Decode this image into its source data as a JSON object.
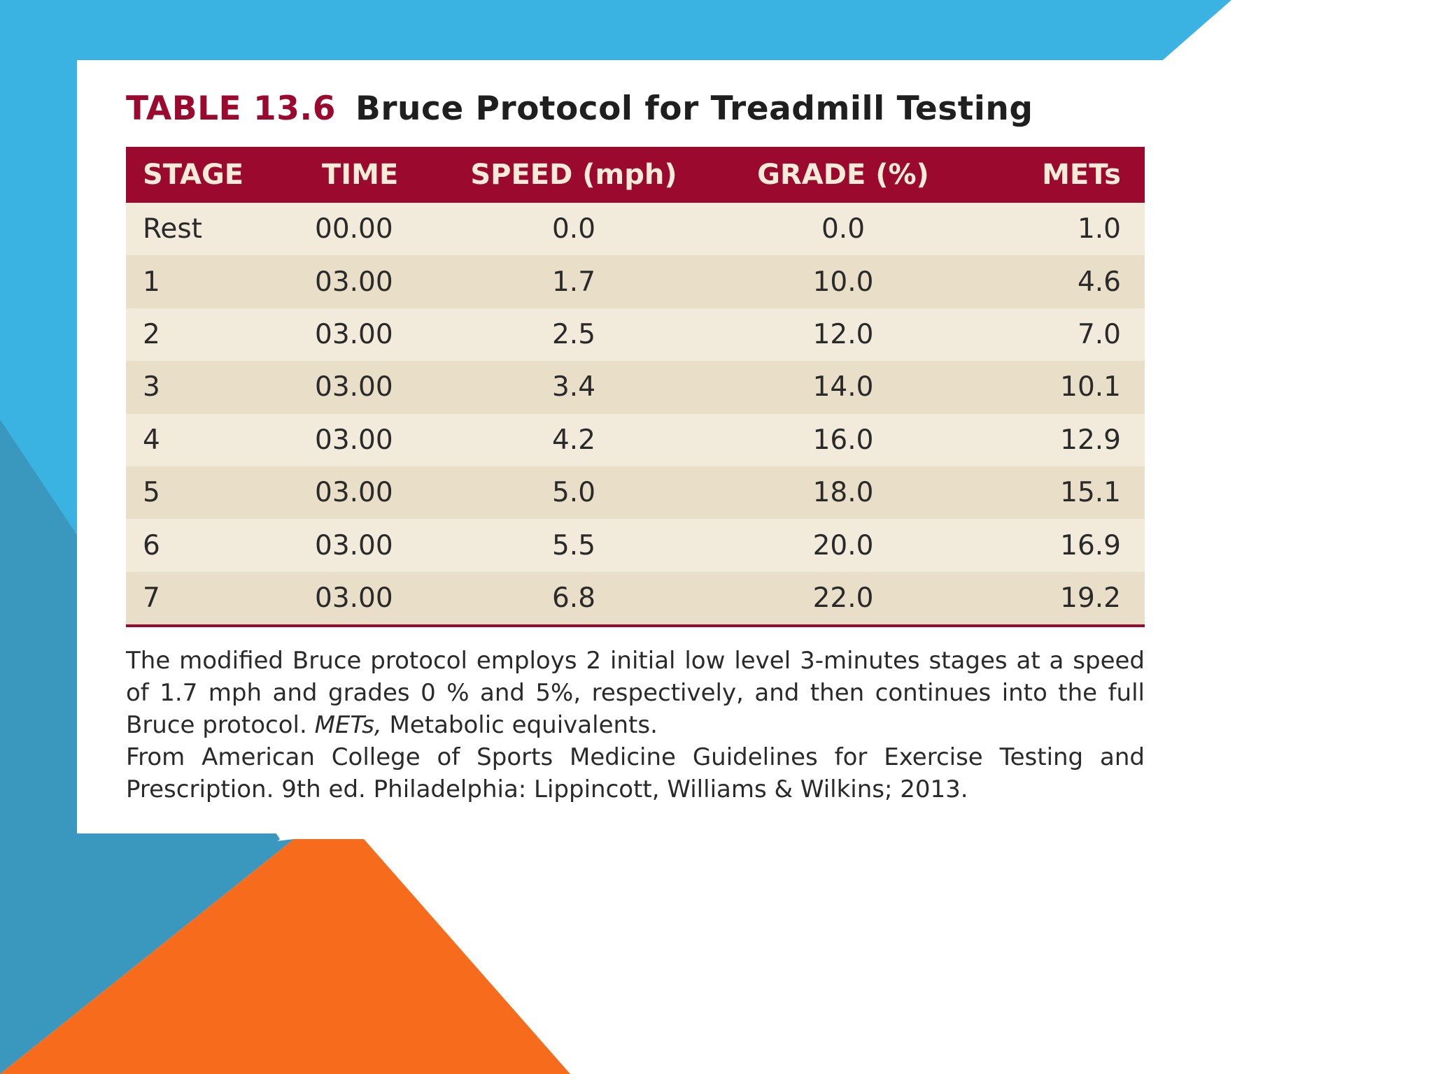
{
  "title": {
    "number": "TABLE 13.6",
    "text": "Bruce Protocol for Treadmill Testing"
  },
  "table": {
    "headers": [
      "STAGE",
      "TIME",
      "SPEED (mph)",
      "GRADE (%)",
      "METs"
    ],
    "rows": [
      [
        "Rest",
        "00.00",
        "0.0",
        "0.0",
        "1.0"
      ],
      [
        "1",
        "03.00",
        "1.7",
        "10.0",
        "4.6"
      ],
      [
        "2",
        "03.00",
        "2.5",
        "12.0",
        "7.0"
      ],
      [
        "3",
        "03.00",
        "3.4",
        "14.0",
        "10.1"
      ],
      [
        "4",
        "03.00",
        "4.2",
        "16.0",
        "12.9"
      ],
      [
        "5",
        "03.00",
        "5.0",
        "18.0",
        "15.1"
      ],
      [
        "6",
        "03.00",
        "5.5",
        "20.0",
        "16.9"
      ],
      [
        "7",
        "03.00",
        "6.8",
        "22.0",
        "19.2"
      ]
    ]
  },
  "footnote": {
    "line1": "The modified Bruce protocol employs 2 initial low level 3-minutes stages at a speed of 1.7 mph and grades 0 % and 5%, respectively, and then continues into the full Bruce protocol.",
    "abbr": "METs,",
    "abbr_def": "Metabolic equivalents.",
    "source": "From American College of Sports Medicine Guidelines for Exercise Testing and Prescription. 9th ed. Philadelphia: Lippincott, Williams & Wilkins; 2013."
  },
  "colors": {
    "header_bg": "#9b0a2e",
    "row_light": "#f2eadb",
    "row_dark": "#e9dfc8",
    "bg_blue": "#3bb3e2",
    "bg_teal": "#3a97bd",
    "bg_orange": "#f76b1c"
  }
}
